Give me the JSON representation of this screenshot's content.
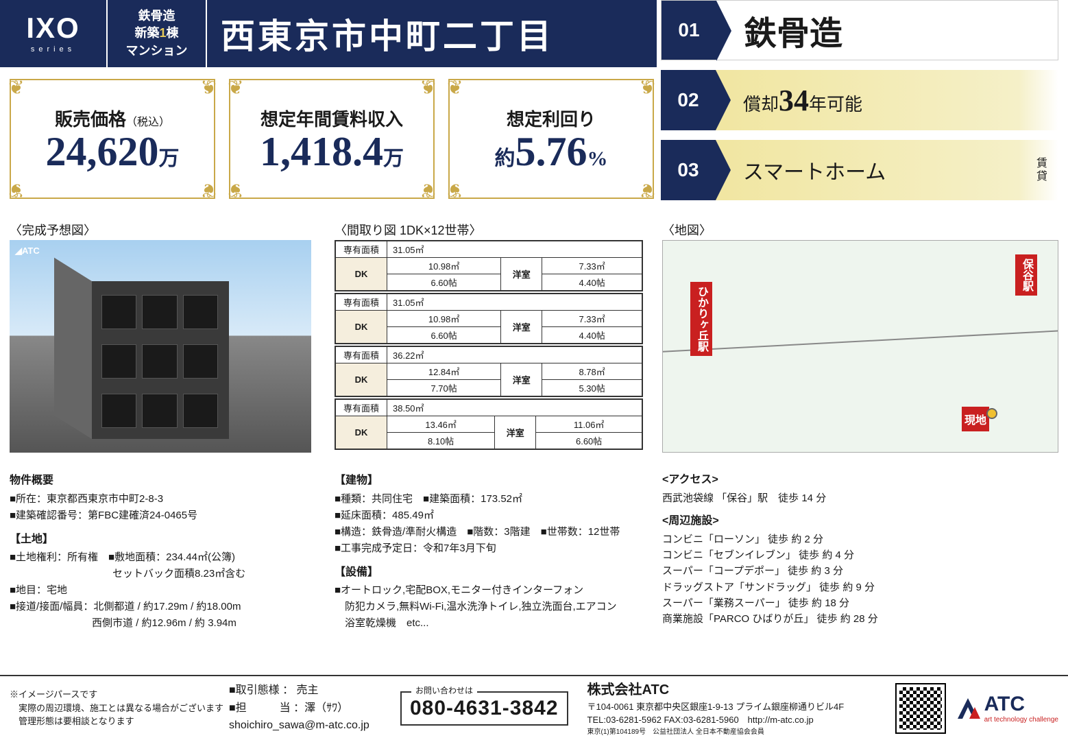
{
  "logo": {
    "text": "IXO",
    "series": "series"
  },
  "headerTag": {
    "l1": "鉄骨造",
    "l2a": "新築",
    "l2b": "1",
    "l2c": "棟",
    "l3": "マンション"
  },
  "title": "西東京市中町二丁目",
  "features": [
    {
      "num": "01",
      "text": "鉄骨造"
    },
    {
      "num": "02",
      "pre": "償却",
      "big": "34",
      "post": "年可能"
    },
    {
      "num": "03",
      "text": "スマートホーム",
      "side": "賃\n貸"
    }
  ],
  "stats": [
    {
      "label": "販売価格",
      "sub": "（税込）",
      "value": "24,620",
      "unit": "万"
    },
    {
      "label": "想定年間賃料収入",
      "value": "1,418.4",
      "unit": "万"
    },
    {
      "label": "想定利回り",
      "pre": "約",
      "value": "5.76",
      "unit": "%"
    }
  ],
  "sectionLabels": {
    "render": "〈完成予想図〉",
    "floorplan": "〈間取り図 1DK×12世帯〉",
    "map": "〈地図〉"
  },
  "renderWatermark": "◢ATC",
  "floorplan": {
    "labelArea": "専有面積",
    "labelDK": "DK",
    "labelRoom": "洋室",
    "units": [
      {
        "area": "31.05㎡",
        "dk_m": "10.98㎡",
        "dk_j": "6.60帖",
        "rm_m": "7.33㎡",
        "rm_j": "4.40帖"
      },
      {
        "area": "31.05㎡",
        "dk_m": "10.98㎡",
        "dk_j": "6.60帖",
        "rm_m": "7.33㎡",
        "rm_j": "4.40帖"
      },
      {
        "area": "36.22㎡",
        "dk_m": "12.84㎡",
        "dk_j": "7.70帖",
        "rm_m": "8.78㎡",
        "rm_j": "5.30帖"
      },
      {
        "area": "38.50㎡",
        "dk_m": "13.46㎡",
        "dk_j": "8.10帖",
        "rm_m": "11.06㎡",
        "rm_j": "6.60帖"
      }
    ]
  },
  "map": {
    "station1": "ひかりヶ丘駅",
    "station2": "保谷駅",
    "location": "現地"
  },
  "info1": {
    "h1": "物件概要",
    "l1": "■所在：東京都西東京市中町2-8-3",
    "l2": "■建築確認番号：第FBC建確済24-0465号",
    "h2": "【土地】",
    "l3": "■土地権利：所有権　■敷地面積：234.44㎡(公簿)",
    "l4": "　　　　　　　　　　セットバック面積8.23㎡含む",
    "l5": "■地目：宅地",
    "l6": "■接道/接面/幅員：北側都道 / 約17.29m / 約18.00m",
    "l7": "　　　　　　　　西側市道 / 約12.96m / 約  3.94m"
  },
  "info2": {
    "h1": "【建物】",
    "l1": "■種類：共同住宅　■建築面積：173.52㎡",
    "l2": "■延床面積：485.49㎡",
    "l3": "■構造：鉄骨造/準耐火構造　■階数：3階建　■世帯数：12世帯",
    "l4": "■工事完成予定日：令和7年3月下旬",
    "h2": "【設備】",
    "l5": "■オートロック,宅配BOX,モニター付きインターフォン",
    "l6": "　防犯カメラ,無料Wi-Fi,温水洗浄トイレ,独立洗面台,エアコン",
    "l7": "　浴室乾燥機　etc..."
  },
  "info3": {
    "h1": "<アクセス>",
    "l1": "西武池袋線 「保谷」駅　徒歩 14 分",
    "h2": "<周辺施設>",
    "l2": "コンビニ「ローソン」 徒歩 約 2 分",
    "l3": "コンビニ「セブンイレブン」 徒歩 約 4 分",
    "l4": "スーパー「コープデポー」 徒歩 約 3 分",
    "l5": "ドラッグストア「サンドラッグ」 徒歩 約 9 分",
    "l6": "スーパー「業務スーパー」 徒歩 約 18 分",
    "l7": "商業施設「PARCO ひばりが丘」 徒歩 約 28 分"
  },
  "footer": {
    "disclaimer": "※イメージパースです\n　実際の周辺環境、施工とは異なる場合がございます\n　管理形態は要相談となります",
    "contact1a": "■取引態様 ： 売主",
    "contact1b": "■担　　　当 ：澤（ｻﾜ）",
    "contact1c": "shoichiro_sawa@m-atc.co.jp",
    "telLabel": "お問い合わせは",
    "tel": "080-4631-3842",
    "companyName": "株式会社ATC",
    "companyAddr": "〒104-0061 東京都中央区銀座1-9-13 プライム銀座柳通りビル4F",
    "companyTel": "TEL:03-6281-5962 FAX:03-6281-5960　http://m-atc.co.jp",
    "companyLic": "東京(1)第104189号　公益社団法人 全日本不動産協会会員",
    "logoText": "ATC",
    "logoSub": "art technology challenge"
  }
}
